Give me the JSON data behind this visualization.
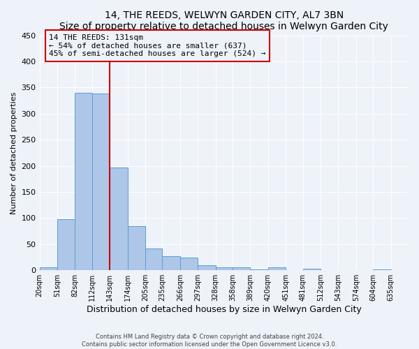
{
  "title": "14, THE REEDS, WELWYN GARDEN CITY, AL7 3BN",
  "subtitle": "Size of property relative to detached houses in Welwyn Garden City",
  "xlabel": "Distribution of detached houses by size in Welwyn Garden City",
  "ylabel": "Number of detached properties",
  "bin_labels": [
    "20sqm",
    "51sqm",
    "82sqm",
    "112sqm",
    "143sqm",
    "174sqm",
    "205sqm",
    "235sqm",
    "266sqm",
    "297sqm",
    "328sqm",
    "358sqm",
    "389sqm",
    "420sqm",
    "451sqm",
    "481sqm",
    "512sqm",
    "543sqm",
    "574sqm",
    "604sqm",
    "635sqm"
  ],
  "bar_values": [
    5,
    98,
    340,
    338,
    197,
    85,
    42,
    27,
    24,
    10,
    6,
    5,
    2,
    6,
    0,
    3,
    0,
    0,
    0,
    2,
    0
  ],
  "bar_color": "#aec6e8",
  "bar_edge_color": "#5a9fd4",
  "vline_color": "#cc0000",
  "annotation_title": "14 THE REEDS: 131sqm",
  "annotation_line1": "← 54% of detached houses are smaller (637)",
  "annotation_line2": "45% of semi-detached houses are larger (524) →",
  "annotation_box_color": "#cc0000",
  "ylim": [
    0,
    450
  ],
  "yticks": [
    0,
    50,
    100,
    150,
    200,
    250,
    300,
    350,
    400,
    450
  ],
  "bin_edges": [
    20,
    51,
    82,
    112,
    143,
    174,
    205,
    235,
    266,
    297,
    328,
    358,
    389,
    420,
    451,
    481,
    512,
    543,
    574,
    604,
    635,
    666
  ],
  "footer1": "Contains HM Land Registry data © Crown copyright and database right 2024.",
  "footer2": "Contains public sector information licensed under the Open Government Licence v3.0.",
  "background_color": "#eef2f9"
}
